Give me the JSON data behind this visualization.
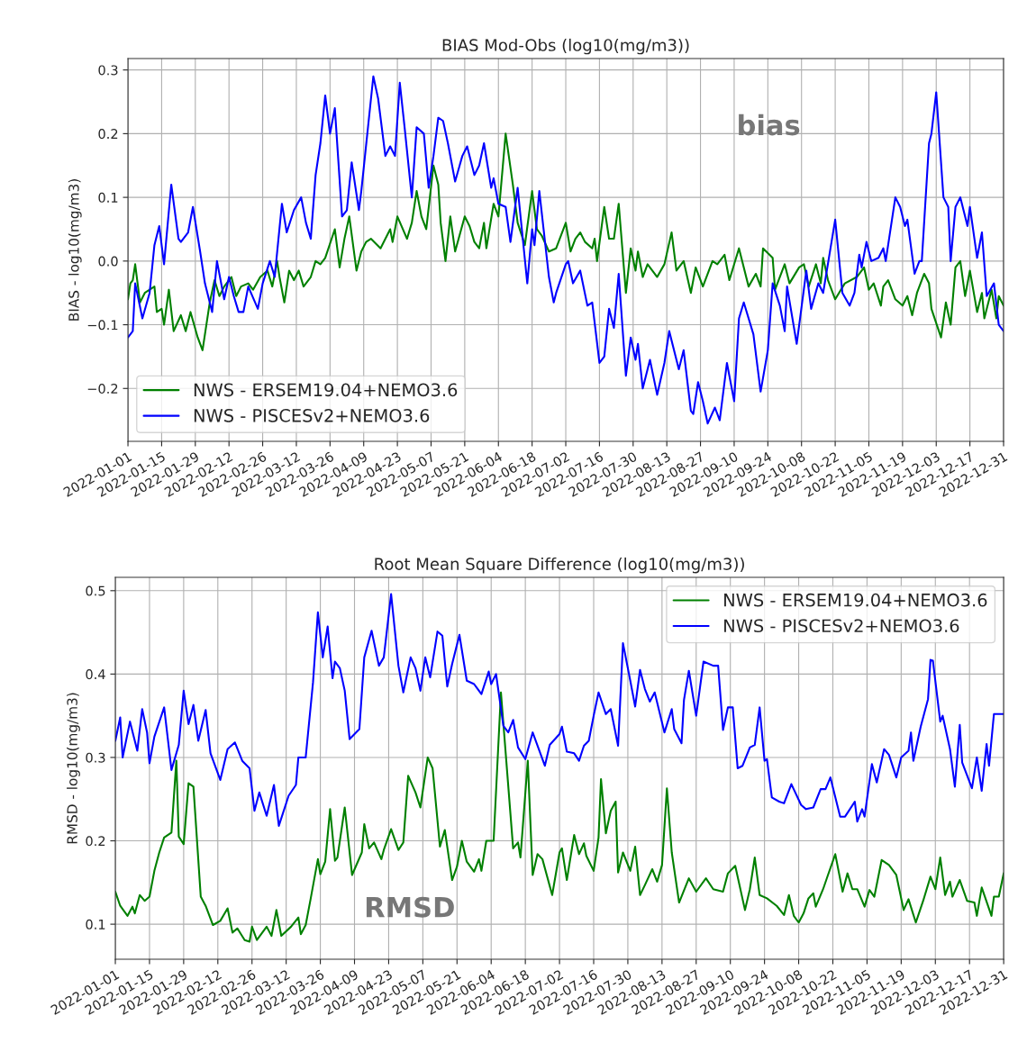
{
  "chart_data": [
    {
      "type": "line",
      "title": "BIAS Mod-Obs (log10(mg/m3))",
      "ylabel": "BIAS - log10(mg/m3)",
      "annotations": [
        "bias"
      ],
      "grid": true,
      "legend": "bottom left",
      "xlim": [
        "2022-01-01",
        "2022-12-31"
      ],
      "xticks": [
        "2022-01-01",
        "2022-01-15",
        "2022-01-29",
        "2022-02-12",
        "2022-02-26",
        "2022-03-12",
        "2022-03-26",
        "2022-04-09",
        "2022-04-23",
        "2022-05-07",
        "2022-05-21",
        "2022-06-04",
        "2022-06-18",
        "2022-07-02",
        "2022-07-16",
        "2022-07-30",
        "2022-08-13",
        "2022-08-27",
        "2022-09-10",
        "2022-09-24",
        "2022-10-08",
        "2022-10-22",
        "2022-11-05",
        "2022-11-19",
        "2022-12-03",
        "2022-12-17",
        "2022-12-31"
      ],
      "ylim": [
        -0.283,
        0.318
      ],
      "yticks": [
        {
          "value": -0.2,
          "label": "−0.2"
        },
        {
          "value": -0.1,
          "label": "−0.1"
        },
        {
          "value": 0,
          "label": "0.0"
        },
        0.1,
        0.2,
        0.3
      ],
      "series": [
        {
          "name": "NWS - ERSEM19.04+NEMO3.6",
          "color": "#008000",
          "x": [
            "2022-01-01",
            "2022-01-02",
            "2022-01-03",
            "2022-01-04",
            "2022-01-06",
            "2022-01-08",
            "2022-01-10",
            "2022-01-12",
            "2022-01-13",
            "2022-01-15",
            "2022-01-16",
            "2022-01-18",
            "2022-01-20",
            "2022-01-23",
            "2022-01-25",
            "2022-01-27",
            "2022-01-30",
            "2022-02-01",
            "2022-02-04",
            "2022-02-06",
            "2022-02-08",
            "2022-02-10",
            "2022-02-13",
            "2022-02-15",
            "2022-02-17",
            "2022-02-20",
            "2022-02-22",
            "2022-02-25",
            "2022-02-28",
            "2022-03-02",
            "2022-03-04",
            "2022-03-05",
            "2022-03-07",
            "2022-03-09",
            "2022-03-11",
            "2022-03-13",
            "2022-03-15",
            "2022-03-18",
            "2022-03-20",
            "2022-03-22",
            "2022-03-24",
            "2022-03-28",
            "2022-03-30",
            "2022-04-01",
            "2022-04-03",
            "2022-04-06",
            "2022-04-08",
            "2022-04-10",
            "2022-04-12",
            "2022-04-16",
            "2022-04-20",
            "2022-04-21",
            "2022-04-23",
            "2022-04-27",
            "2022-04-29",
            "2022-05-01",
            "2022-05-03",
            "2022-05-05",
            "2022-05-08",
            "2022-05-10",
            "2022-05-11",
            "2022-05-13",
            "2022-05-15",
            "2022-05-17",
            "2022-05-21",
            "2022-05-23",
            "2022-05-25",
            "2022-05-27",
            "2022-05-29",
            "2022-05-30",
            "2022-06-02",
            "2022-06-04",
            "2022-06-07",
            "2022-06-10",
            "2022-06-12",
            "2022-06-15",
            "2022-06-18",
            "2022-06-20",
            "2022-06-22",
            "2022-06-25",
            "2022-06-28",
            "2022-07-02",
            "2022-07-04",
            "2022-07-06",
            "2022-07-08",
            "2022-07-10",
            "2022-07-13",
            "2022-07-14",
            "2022-07-15",
            "2022-07-18",
            "2022-07-20",
            "2022-07-22",
            "2022-07-24",
            "2022-07-27",
            "2022-07-29",
            "2022-07-31",
            "2022-08-01",
            "2022-08-03",
            "2022-08-05",
            "2022-08-09",
            "2022-08-12",
            "2022-08-15",
            "2022-08-17",
            "2022-08-20",
            "2022-08-23",
            "2022-08-25",
            "2022-08-28",
            "2022-09-01",
            "2022-09-03",
            "2022-09-06",
            "2022-09-08",
            "2022-09-12",
            "2022-09-16",
            "2022-09-19",
            "2022-09-21",
            "2022-09-22",
            "2022-09-26",
            "2022-09-27",
            "2022-10-01",
            "2022-10-03",
            "2022-10-07",
            "2022-10-09",
            "2022-10-11",
            "2022-10-14",
            "2022-10-16",
            "2022-10-17",
            "2022-10-19",
            "2022-10-22",
            "2022-10-26",
            "2022-10-31",
            "2022-11-03",
            "2022-11-05",
            "2022-11-07",
            "2022-11-10",
            "2022-11-11",
            "2022-11-13",
            "2022-11-16",
            "2022-11-19",
            "2022-11-21",
            "2022-11-23",
            "2022-11-25",
            "2022-11-28",
            "2022-11-30",
            "2022-12-01",
            "2022-12-05",
            "2022-12-07",
            "2022-12-09",
            "2022-12-11",
            "2022-12-13",
            "2022-12-15",
            "2022-12-17",
            "2022-12-20",
            "2022-12-22",
            "2022-12-23",
            "2022-12-26",
            "2022-12-28",
            "2022-12-29",
            "2022-12-31"
          ],
          "values": [
            -0.06,
            -0.035,
            -0.03,
            -0.005,
            -0.065,
            -0.05,
            -0.045,
            -0.04,
            -0.08,
            -0.075,
            -0.1,
            -0.045,
            -0.11,
            -0.085,
            -0.11,
            -0.08,
            -0.12,
            -0.14,
            -0.065,
            -0.03,
            -0.055,
            -0.04,
            -0.025,
            -0.055,
            -0.04,
            -0.035,
            -0.045,
            -0.025,
            -0.015,
            -0.04,
            0.0,
            -0.025,
            -0.065,
            -0.015,
            -0.03,
            -0.015,
            -0.04,
            -0.025,
            0.0,
            -0.005,
            0.005,
            0.05,
            -0.01,
            0.035,
            0.07,
            -0.015,
            0.015,
            0.03,
            0.035,
            0.02,
            0.05,
            0.03,
            0.07,
            0.035,
            0.06,
            0.11,
            0.07,
            0.05,
            0.15,
            0.12,
            0.06,
            0.0,
            0.07,
            0.015,
            0.07,
            0.055,
            0.03,
            0.02,
            0.06,
            0.02,
            0.09,
            0.07,
            0.2,
            0.12,
            0.06,
            0.025,
            0.11,
            0.05,
            0.04,
            0.015,
            0.02,
            0.06,
            0.015,
            0.035,
            0.045,
            0.03,
            0.02,
            0.035,
            0.0,
            0.085,
            0.035,
            0.035,
            0.09,
            -0.05,
            0.02,
            -0.015,
            0.015,
            -0.025,
            -0.005,
            -0.025,
            -0.005,
            0.045,
            -0.015,
            0.0,
            -0.05,
            -0.01,
            -0.04,
            0.0,
            -0.005,
            0.01,
            -0.03,
            0.02,
            -0.04,
            -0.02,
            -0.04,
            0.02,
            0.005,
            -0.045,
            -0.005,
            -0.035,
            -0.01,
            -0.005,
            -0.04,
            -0.005,
            -0.035,
            0.005,
            -0.03,
            -0.06,
            -0.035,
            -0.025,
            -0.01,
            -0.045,
            -0.035,
            -0.07,
            -0.04,
            -0.03,
            -0.06,
            -0.07,
            -0.055,
            -0.085,
            -0.05,
            -0.02,
            -0.035,
            -0.075,
            -0.12,
            -0.065,
            -0.1,
            -0.01,
            0.0,
            -0.055,
            -0.015,
            -0.08,
            -0.05,
            -0.09,
            -0.045,
            -0.09,
            -0.055,
            -0.07
          ]
        },
        {
          "name": "NWS - PISCESv2+NEMO3.6",
          "color": "#0000ff",
          "x": [
            "2022-01-01",
            "2022-01-03",
            "2022-01-04",
            "2022-01-07",
            "2022-01-10",
            "2022-01-12",
            "2022-01-14",
            "2022-01-16",
            "2022-01-19",
            "2022-01-22",
            "2022-01-23",
            "2022-01-26",
            "2022-01-28",
            "2022-01-31",
            "2022-02-02",
            "2022-02-04",
            "2022-02-05",
            "2022-02-07",
            "2022-02-10",
            "2022-02-12",
            "2022-02-14",
            "2022-02-16",
            "2022-02-18",
            "2022-02-20",
            "2022-02-24",
            "2022-02-26",
            "2022-03-01",
            "2022-03-03",
            "2022-03-06",
            "2022-03-08",
            "2022-03-11",
            "2022-03-14",
            "2022-03-16",
            "2022-03-18",
            "2022-03-20",
            "2022-03-22",
            "2022-03-24",
            "2022-03-26",
            "2022-03-28",
            "2022-03-31",
            "2022-04-02",
            "2022-04-04",
            "2022-04-07",
            "2022-04-08",
            "2022-04-13",
            "2022-04-15",
            "2022-04-18",
            "2022-04-20",
            "2022-04-22",
            "2022-04-24",
            "2022-04-26",
            "2022-04-29",
            "2022-05-01",
            "2022-05-04",
            "2022-05-06",
            "2022-05-08",
            "2022-05-10",
            "2022-05-12",
            "2022-05-14",
            "2022-05-17",
            "2022-05-20",
            "2022-05-22",
            "2022-05-25",
            "2022-05-27",
            "2022-05-29",
            "2022-06-01",
            "2022-06-02",
            "2022-06-04",
            "2022-06-07",
            "2022-06-09",
            "2022-06-12",
            "2022-06-16",
            "2022-06-18",
            "2022-06-19",
            "2022-06-21",
            "2022-06-25",
            "2022-06-27",
            "2022-06-28",
            "2022-07-02",
            "2022-07-03",
            "2022-07-05",
            "2022-07-08",
            "2022-07-11",
            "2022-07-13",
            "2022-07-16",
            "2022-07-18",
            "2022-07-20",
            "2022-07-22",
            "2022-07-24",
            "2022-07-27",
            "2022-07-29",
            "2022-07-31",
            "2022-08-01",
            "2022-08-03",
            "2022-08-06",
            "2022-08-09",
            "2022-08-12",
            "2022-08-14",
            "2022-08-18",
            "2022-08-20",
            "2022-08-23",
            "2022-08-24",
            "2022-08-26",
            "2022-08-28",
            "2022-08-30",
            "2022-09-02",
            "2022-09-04",
            "2022-09-07",
            "2022-09-10",
            "2022-09-12",
            "2022-09-14",
            "2022-09-18",
            "2022-09-21",
            "2022-09-24",
            "2022-09-26",
            "2022-09-29",
            "2022-10-01",
            "2022-10-02",
            "2022-10-06",
            "2022-10-10",
            "2022-10-12",
            "2022-10-15",
            "2022-10-17",
            "2022-10-22",
            "2022-10-25",
            "2022-10-28",
            "2022-10-30",
            "2022-11-01",
            "2022-11-02",
            "2022-11-04",
            "2022-11-06",
            "2022-11-09",
            "2022-11-11",
            "2022-11-12",
            "2022-11-16",
            "2022-11-18",
            "2022-11-20",
            "2022-11-21",
            "2022-11-24",
            "2022-11-26",
            "2022-11-27",
            "2022-11-30",
            "2022-12-01",
            "2022-12-03",
            "2022-12-04",
            "2022-12-06",
            "2022-12-08",
            "2022-12-09",
            "2022-12-11",
            "2022-12-13",
            "2022-12-16",
            "2022-12-17",
            "2022-12-20",
            "2022-12-22",
            "2022-12-24",
            "2022-12-27",
            "2022-12-29",
            "2022-12-31"
          ],
          "values": [
            -0.12,
            -0.11,
            -0.035,
            -0.09,
            -0.05,
            0.025,
            0.055,
            -0.005,
            0.12,
            0.035,
            0.03,
            0.045,
            0.085,
            0.015,
            -0.035,
            -0.065,
            -0.08,
            0.0,
            -0.06,
            -0.025,
            -0.055,
            -0.08,
            -0.08,
            -0.04,
            -0.075,
            -0.035,
            0.0,
            -0.025,
            0.09,
            0.045,
            0.08,
            0.1,
            0.06,
            0.035,
            0.135,
            0.185,
            0.26,
            0.2,
            0.24,
            0.07,
            0.08,
            0.155,
            0.08,
            0.11,
            0.29,
            0.255,
            0.165,
            0.18,
            0.165,
            0.28,
            0.21,
            0.1,
            0.21,
            0.2,
            0.115,
            0.165,
            0.225,
            0.22,
            0.185,
            0.125,
            0.165,
            0.18,
            0.135,
            0.15,
            0.185,
            0.115,
            0.13,
            0.09,
            0.085,
            0.03,
            0.115,
            -0.035,
            0.05,
            0.025,
            0.11,
            -0.025,
            -0.065,
            -0.05,
            -0.005,
            0.0,
            -0.035,
            -0.015,
            -0.07,
            -0.065,
            -0.16,
            -0.15,
            -0.075,
            -0.105,
            -0.02,
            -0.18,
            -0.12,
            -0.155,
            -0.13,
            -0.2,
            -0.155,
            -0.21,
            -0.16,
            -0.11,
            -0.17,
            -0.14,
            -0.235,
            -0.24,
            -0.19,
            -0.22,
            -0.255,
            -0.23,
            -0.25,
            -0.16,
            -0.22,
            -0.09,
            -0.065,
            -0.115,
            -0.205,
            -0.14,
            -0.035,
            -0.07,
            -0.11,
            -0.04,
            -0.13,
            -0.015,
            -0.075,
            -0.035,
            -0.05,
            0.065,
            -0.05,
            -0.07,
            -0.05,
            0.01,
            -0.01,
            0.03,
            0.0,
            0.005,
            0.02,
            0.0,
            0.1,
            0.085,
            0.055,
            0.065,
            -0.02,
            0.0,
            0.0,
            0.185,
            0.2,
            0.265,
            0.21,
            0.1,
            0.085,
            0.0,
            0.085,
            0.1,
            0.055,
            0.085,
            0.005,
            0.045,
            -0.055,
            -0.035,
            -0.1,
            -0.11
          ]
        }
      ]
    },
    {
      "type": "line",
      "title": "Root Mean Square Difference (log10(mg/m3))",
      "ylabel": "RMSD - log10(mg/m3)",
      "annotations": [
        "RMSD"
      ],
      "grid": true,
      "legend": "top right",
      "xlim": [
        "2022-01-01",
        "2022-12-31"
      ],
      "xticks": [
        "2022-01-01",
        "2022-01-15",
        "2022-01-29",
        "2022-02-12",
        "2022-02-26",
        "2022-03-12",
        "2022-03-26",
        "2022-04-09",
        "2022-04-23",
        "2022-05-07",
        "2022-05-21",
        "2022-06-04",
        "2022-06-18",
        "2022-07-02",
        "2022-07-16",
        "2022-07-30",
        "2022-08-13",
        "2022-08-27",
        "2022-09-10",
        "2022-09-24",
        "2022-10-08",
        "2022-10-22",
        "2022-11-05",
        "2022-11-19",
        "2022-12-03",
        "2022-12-17",
        "2022-12-31"
      ],
      "ylim": [
        0.058,
        0.516
      ],
      "yticks": [
        0.1,
        0.2,
        0.3,
        0.4,
        0.5
      ],
      "series": [
        {
          "name": "NWS - ERSEM19.04+NEMO3.6",
          "color": "#008000",
          "x": [
            "2022-01-01",
            "2022-01-03",
            "2022-01-06",
            "2022-01-08",
            "2022-01-09",
            "2022-01-11",
            "2022-01-13",
            "2022-01-15",
            "2022-01-17",
            "2022-01-19",
            "2022-01-21",
            "2022-01-24",
            "2022-01-26",
            "2022-01-27",
            "2022-01-29",
            "2022-01-31",
            "2022-02-02",
            "2022-02-05",
            "2022-02-07",
            "2022-02-10",
            "2022-02-13",
            "2022-02-16",
            "2022-02-18",
            "2022-02-20",
            "2022-02-23",
            "2022-02-25",
            "2022-02-26",
            "2022-02-28",
            "2022-03-04",
            "2022-03-06",
            "2022-03-08",
            "2022-03-10",
            "2022-03-14",
            "2022-03-17",
            "2022-03-18",
            "2022-03-20",
            "2022-03-22",
            "2022-03-25",
            "2022-03-26",
            "2022-03-28",
            "2022-03-30",
            "2022-04-01",
            "2022-04-02",
            "2022-04-05",
            "2022-04-08",
            "2022-04-12",
            "2022-04-13",
            "2022-04-15",
            "2022-04-17",
            "2022-04-20",
            "2022-04-21",
            "2022-04-24",
            "2022-04-27",
            "2022-04-29",
            "2022-05-01",
            "2022-05-04",
            "2022-05-06",
            "2022-05-09",
            "2022-05-11",
            "2022-05-14",
            "2022-05-16",
            "2022-05-19",
            "2022-05-21",
            "2022-05-23",
            "2022-05-25",
            "2022-05-28",
            "2022-05-30",
            "2022-05-31",
            "2022-06-02",
            "2022-06-05",
            "2022-06-08",
            "2022-06-13",
            "2022-06-15",
            "2022-06-16",
            "2022-06-19",
            "2022-06-21",
            "2022-06-23",
            "2022-06-25",
            "2022-06-29",
            "2022-07-02",
            "2022-07-03",
            "2022-07-05",
            "2022-07-08",
            "2022-07-10",
            "2022-07-12",
            "2022-07-13",
            "2022-07-16",
            "2022-07-18",
            "2022-07-19",
            "2022-07-21",
            "2022-07-23",
            "2022-07-25",
            "2022-07-26",
            "2022-07-28",
            "2022-07-31",
            "2022-08-02",
            "2022-08-04",
            "2022-08-06",
            "2022-08-09",
            "2022-08-11",
            "2022-08-13",
            "2022-08-15",
            "2022-08-17",
            "2022-08-20",
            "2022-08-24",
            "2022-08-27",
            "2022-08-31",
            "2022-09-03",
            "2022-09-07",
            "2022-09-09",
            "2022-09-12",
            "2022-09-16",
            "2022-09-18",
            "2022-09-20",
            "2022-09-22",
            "2022-09-25",
            "2022-09-29",
            "2022-10-02",
            "2022-10-04",
            "2022-10-06",
            "2022-10-08",
            "2022-10-10",
            "2022-10-12",
            "2022-10-14",
            "2022-10-15",
            "2022-10-18",
            "2022-10-20",
            "2022-10-23",
            "2022-10-26",
            "2022-10-28",
            "2022-10-30",
            "2022-11-01",
            "2022-11-04",
            "2022-11-06",
            "2022-11-08",
            "2022-11-11",
            "2022-11-14",
            "2022-11-17",
            "2022-11-20",
            "2022-11-22",
            "2022-11-25",
            "2022-11-28",
            "2022-12-01",
            "2022-12-03",
            "2022-12-05",
            "2022-12-07",
            "2022-12-09",
            "2022-12-10",
            "2022-12-13",
            "2022-12-16",
            "2022-12-19",
            "2022-12-20",
            "2022-12-22",
            "2022-12-26",
            "2022-12-27",
            "2022-12-29",
            "2022-12-31"
          ],
          "values": [
            0.139,
            0.122,
            0.11,
            0.121,
            0.113,
            0.135,
            0.128,
            0.133,
            0.164,
            0.186,
            0.204,
            0.21,
            0.296,
            0.205,
            0.196,
            0.269,
            0.265,
            0.133,
            0.122,
            0.099,
            0.104,
            0.119,
            0.09,
            0.095,
            0.081,
            0.079,
            0.097,
            0.081,
            0.097,
            0.086,
            0.117,
            0.086,
            0.097,
            0.108,
            0.088,
            0.099,
            0.13,
            0.178,
            0.16,
            0.175,
            0.238,
            0.176,
            0.18,
            0.24,
            0.159,
            0.186,
            0.22,
            0.191,
            0.198,
            0.178,
            0.189,
            0.214,
            0.189,
            0.198,
            0.278,
            0.258,
            0.24,
            0.3,
            0.287,
            0.193,
            0.213,
            0.153,
            0.169,
            0.2,
            0.175,
            0.163,
            0.178,
            0.164,
            0.2,
            0.2,
            0.378,
            0.191,
            0.198,
            0.18,
            0.296,
            0.159,
            0.184,
            0.178,
            0.135,
            0.186,
            0.191,
            0.153,
            0.207,
            0.184,
            0.197,
            0.182,
            0.164,
            0.204,
            0.274,
            0.209,
            0.236,
            0.247,
            0.162,
            0.186,
            0.164,
            0.193,
            0.135,
            0.147,
            0.166,
            0.151,
            0.171,
            0.263,
            0.186,
            0.126,
            0.155,
            0.139,
            0.155,
            0.142,
            0.139,
            0.161,
            0.17,
            0.117,
            0.142,
            0.18,
            0.135,
            0.131,
            0.122,
            0.111,
            0.135,
            0.11,
            0.102,
            0.113,
            0.131,
            0.137,
            0.121,
            0.142,
            0.159,
            0.184,
            0.139,
            0.161,
            0.142,
            0.142,
            0.121,
            0.141,
            0.133,
            0.177,
            0.171,
            0.159,
            0.117,
            0.13,
            0.102,
            0.128,
            0.157,
            0.142,
            0.18,
            0.135,
            0.151,
            0.133,
            0.153,
            0.128,
            0.126,
            0.11,
            0.144,
            0.11,
            0.133,
            0.133,
            0.161
          ]
        },
        {
          "name": "NWS - PISCESv2+NEMO3.6",
          "color": "#0000ff",
          "x": [
            "2022-01-01",
            "2022-01-03",
            "2022-01-04",
            "2022-01-07",
            "2022-01-10",
            "2022-01-12",
            "2022-01-14",
            "2022-01-15",
            "2022-01-17",
            "2022-01-21",
            "2022-01-24",
            "2022-01-27",
            "2022-01-29",
            "2022-01-31",
            "2022-02-02",
            "2022-02-04",
            "2022-02-07",
            "2022-02-09",
            "2022-02-13",
            "2022-02-16",
            "2022-02-19",
            "2022-02-22",
            "2022-02-25",
            "2022-02-27",
            "2022-03-01",
            "2022-03-04",
            "2022-03-07",
            "2022-03-09",
            "2022-03-13",
            "2022-03-16",
            "2022-03-17",
            "2022-03-20",
            "2022-03-23",
            "2022-03-25",
            "2022-03-27",
            "2022-03-29",
            "2022-03-31",
            "2022-04-01",
            "2022-04-03",
            "2022-04-05",
            "2022-04-07",
            "2022-04-11",
            "2022-04-13",
            "2022-04-16",
            "2022-04-19",
            "2022-04-21",
            "2022-04-24",
            "2022-04-27",
            "2022-04-29",
            "2022-05-02",
            "2022-05-04",
            "2022-05-06",
            "2022-05-08",
            "2022-05-10",
            "2022-05-13",
            "2022-05-15",
            "2022-05-17",
            "2022-05-19",
            "2022-05-22",
            "2022-05-25",
            "2022-05-28",
            "2022-05-31",
            "2022-06-03",
            "2022-06-04",
            "2022-06-06",
            "2022-06-09",
            "2022-06-11",
            "2022-06-13",
            "2022-06-15",
            "2022-06-18",
            "2022-06-21",
            "2022-06-26",
            "2022-06-28",
            "2022-07-02",
            "2022-07-03",
            "2022-07-05",
            "2022-07-08",
            "2022-07-10",
            "2022-07-12",
            "2022-07-14",
            "2022-07-16",
            "2022-07-18",
            "2022-07-21",
            "2022-07-23",
            "2022-07-26",
            "2022-07-28",
            "2022-07-31",
            "2022-08-02",
            "2022-08-04",
            "2022-08-06",
            "2022-08-08",
            "2022-08-10",
            "2022-08-14",
            "2022-08-17",
            "2022-08-18",
            "2022-08-21",
            "2022-08-22",
            "2022-08-24",
            "2022-08-27",
            "2022-08-30",
            "2022-09-03",
            "2022-09-05",
            "2022-09-07",
            "2022-09-09",
            "2022-09-11",
            "2022-09-13",
            "2022-09-15",
            "2022-09-18",
            "2022-09-20",
            "2022-09-22",
            "2022-09-24",
            "2022-09-25",
            "2022-09-27",
            "2022-09-30",
            "2022-10-02",
            "2022-10-05",
            "2022-10-09",
            "2022-10-11",
            "2022-10-14",
            "2022-10-17",
            "2022-10-19",
            "2022-10-21",
            "2022-10-25",
            "2022-10-27",
            "2022-10-29",
            "2022-10-31",
            "2022-11-01",
            "2022-11-03",
            "2022-11-04",
            "2022-11-07",
            "2022-11-09",
            "2022-11-12",
            "2022-11-14",
            "2022-11-17",
            "2022-11-19",
            "2022-11-22",
            "2022-11-23",
            "2022-11-24",
            "2022-11-27",
            "2022-11-30",
            "2022-12-01",
            "2022-12-02",
            "2022-12-05",
            "2022-12-06",
            "2022-12-09",
            "2022-12-11",
            "2022-12-13",
            "2022-12-14",
            "2022-12-18",
            "2022-12-20",
            "2022-12-22",
            "2022-12-24",
            "2022-12-25",
            "2022-12-27",
            "2022-12-31"
          ],
          "values": [
            0.32,
            0.348,
            0.3,
            0.343,
            0.308,
            0.358,
            0.33,
            0.293,
            0.325,
            0.36,
            0.285,
            0.315,
            0.38,
            0.34,
            0.363,
            0.32,
            0.357,
            0.305,
            0.273,
            0.31,
            0.318,
            0.296,
            0.287,
            0.236,
            0.258,
            0.23,
            0.267,
            0.218,
            0.254,
            0.267,
            0.3,
            0.3,
            0.39,
            0.474,
            0.42,
            0.457,
            0.395,
            0.415,
            0.407,
            0.38,
            0.322,
            0.334,
            0.42,
            0.452,
            0.41,
            0.42,
            0.496,
            0.41,
            0.378,
            0.42,
            0.407,
            0.38,
            0.42,
            0.396,
            0.451,
            0.446,
            0.385,
            0.412,
            0.447,
            0.392,
            0.388,
            0.376,
            0.403,
            0.388,
            0.4,
            0.338,
            0.33,
            0.345,
            0.312,
            0.298,
            0.33,
            0.29,
            0.315,
            0.328,
            0.337,
            0.307,
            0.305,
            0.296,
            0.314,
            0.32,
            0.35,
            0.378,
            0.352,
            0.358,
            0.314,
            0.437,
            0.392,
            0.361,
            0.405,
            0.382,
            0.367,
            0.378,
            0.33,
            0.358,
            0.334,
            0.317,
            0.369,
            0.404,
            0.35,
            0.415,
            0.41,
            0.41,
            0.333,
            0.36,
            0.36,
            0.287,
            0.29,
            0.312,
            0.315,
            0.36,
            0.296,
            0.298,
            0.252,
            0.247,
            0.245,
            0.268,
            0.243,
            0.238,
            0.24,
            0.262,
            0.262,
            0.276,
            0.229,
            0.229,
            0.238,
            0.247,
            0.223,
            0.238,
            0.229,
            0.292,
            0.27,
            0.31,
            0.303,
            0.276,
            0.3,
            0.308,
            0.33,
            0.296,
            0.337,
            0.37,
            0.417,
            0.416,
            0.343,
            0.35,
            0.31,
            0.265,
            0.339,
            0.294,
            0.263,
            0.3,
            0.26,
            0.316,
            0.29,
            0.352,
            0.352
          ]
        }
      ]
    }
  ]
}
